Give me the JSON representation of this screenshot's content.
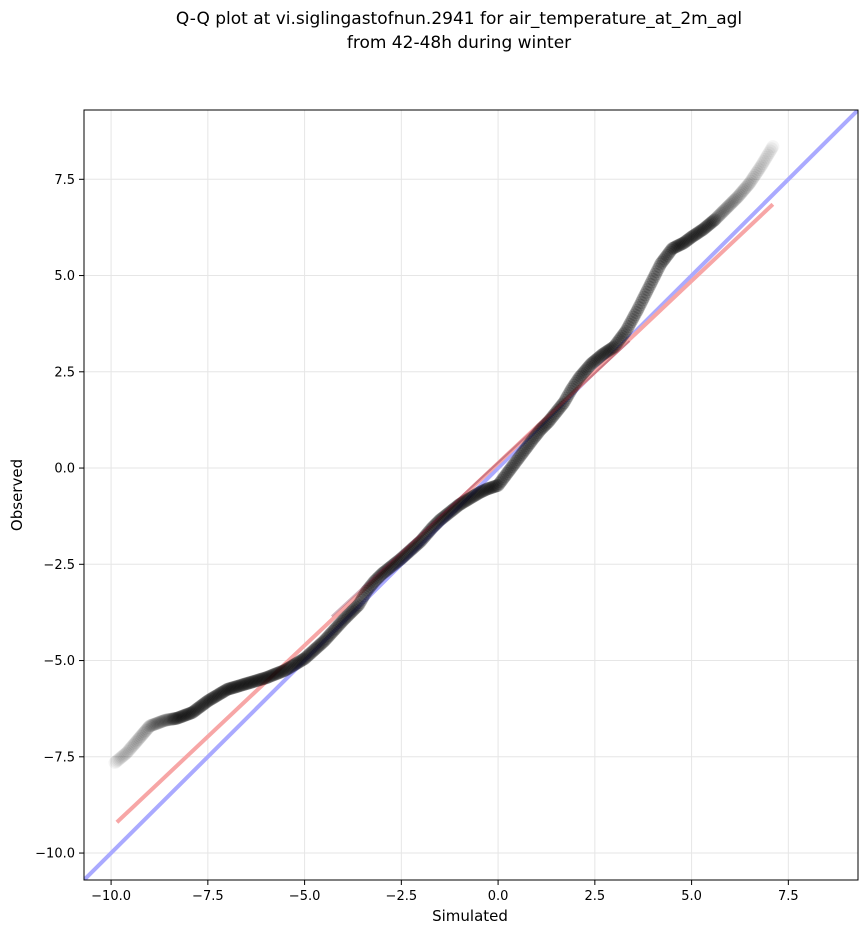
{
  "chart_data": {
    "type": "scatter",
    "title_lines": [
      "Q-Q plot at vi.siglingastofnun.2941 for air_temperature_at_2m_agl",
      "from 42-48h during winter"
    ],
    "xlabel": "Simulated",
    "ylabel": "Observed",
    "xlim": [
      -10.7,
      9.3
    ],
    "ylim": [
      -10.7,
      9.3
    ],
    "grid": true,
    "xticks": [
      -10.0,
      -7.5,
      -5.0,
      -2.5,
      0.0,
      2.5,
      5.0,
      7.5
    ],
    "yticks": [
      -10.0,
      -7.5,
      -5.0,
      -2.5,
      0.0,
      2.5,
      5.0,
      7.5
    ],
    "xtick_labels": [
      "−10.0",
      "−7.5",
      "−5.0",
      "−2.5",
      "0.0",
      "2.5",
      "5.0",
      "7.5"
    ],
    "ytick_labels": [
      "−10.0",
      "−7.5",
      "−5.0",
      "−2.5",
      "0.0",
      "2.5",
      "5.0",
      "7.5"
    ],
    "quantile_curve": {
      "x": [
        -9.9,
        -9.6,
        -9.3,
        -9.0,
        -8.6,
        -8.3,
        -7.9,
        -7.5,
        -7.0,
        -6.5,
        -6.0,
        -5.5,
        -5.0,
        -4.5,
        -4.0,
        -3.6,
        -3.4,
        -3.2,
        -3.0,
        -2.5,
        -2.0,
        -1.7,
        -1.5,
        -1.0,
        -0.5,
        -0.3,
        0.0,
        0.3,
        0.6,
        0.9,
        1.1,
        1.3,
        1.5,
        1.7,
        1.9,
        2.1,
        2.4,
        2.7,
        3.0,
        3.3,
        3.6,
        3.9,
        4.2,
        4.5,
        4.8,
        5.0,
        5.3,
        5.6,
        5.9,
        6.2,
        6.5,
        6.8,
        7.1
      ],
      "y": [
        -7.65,
        -7.4,
        -7.05,
        -6.7,
        -6.55,
        -6.5,
        -6.35,
        -6.05,
        -5.75,
        -5.6,
        -5.45,
        -5.25,
        -4.95,
        -4.5,
        -3.95,
        -3.55,
        -3.2,
        -2.95,
        -2.75,
        -2.35,
        -1.9,
        -1.55,
        -1.35,
        -0.95,
        -0.65,
        -0.55,
        -0.45,
        -0.05,
        0.35,
        0.75,
        1.0,
        1.2,
        1.45,
        1.7,
        2.05,
        2.35,
        2.7,
        2.95,
        3.15,
        3.55,
        4.1,
        4.7,
        5.3,
        5.7,
        5.85,
        6.0,
        6.2,
        6.45,
        6.75,
        7.05,
        7.4,
        7.85,
        8.35
      ]
    },
    "reference_lines": [
      {
        "x": [
          -10.7,
          9.3
        ],
        "y": [
          -10.7,
          9.3
        ],
        "color": "#aaaaff"
      },
      {
        "x": [
          -9.85,
          7.1
        ],
        "y": [
          -9.2,
          6.85
        ],
        "color": "#f7a6a6"
      }
    ],
    "colors": {
      "points": "#000000",
      "core_overlay": "#241020"
    }
  }
}
